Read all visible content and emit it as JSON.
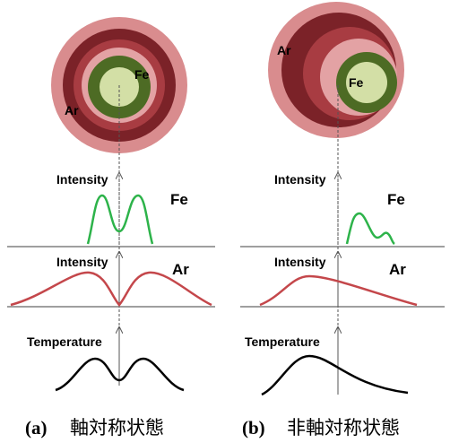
{
  "panels": [
    {
      "label": "(a)",
      "caption": "軸対称状態",
      "fe_label": "Fe",
      "ar_label": "Ar",
      "plots": [
        {
          "y_label": "Intensity",
          "species": "Fe"
        },
        {
          "y_label": "Intensity",
          "species": "Ar"
        },
        {
          "y_label": "Temperature"
        }
      ]
    },
    {
      "label": "(b)",
      "caption": "非軸対称状態",
      "fe_label": "Fe",
      "ar_label": "Ar",
      "plots": [
        {
          "y_label": "Intensity",
          "species": "Fe"
        },
        {
          "y_label": "Intensity",
          "species": "Ar"
        },
        {
          "y_label": "Temperature"
        }
      ]
    }
  ]
}
